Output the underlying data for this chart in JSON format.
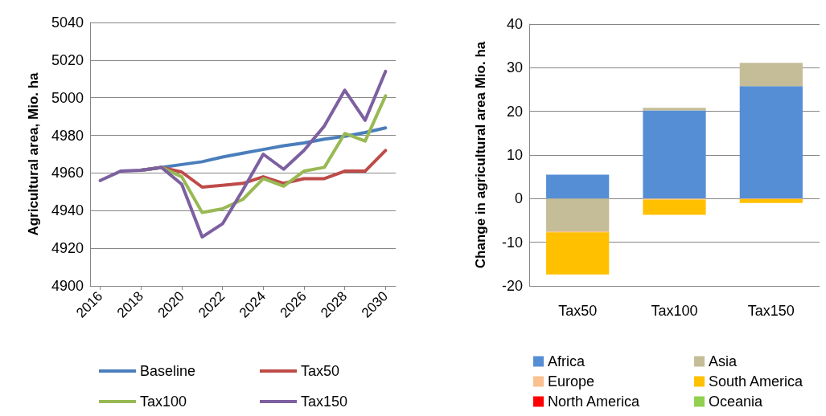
{
  "chart_data": [
    {
      "type": "line",
      "ylabel": "Agricultural area, Mio. ha",
      "x": [
        2016,
        2017,
        2018,
        2019,
        2020,
        2021,
        2022,
        2023,
        2024,
        2025,
        2026,
        2027,
        2028,
        2029,
        2030
      ],
      "xlim": [
        2015.5,
        2030.5
      ],
      "xticks": [
        2016,
        2018,
        2020,
        2022,
        2024,
        2026,
        2028,
        2030
      ],
      "ylim": [
        4900,
        5040
      ],
      "yticks": [
        4900,
        4920,
        4940,
        4960,
        4980,
        5000,
        5020,
        5040
      ],
      "grid": "y",
      "legend": "bottom",
      "marker": "none",
      "line_style": "solid",
      "series": [
        {
          "name": "Baseline",
          "color": "#4a7ebb",
          "values": [
            null,
            null,
            4961.5,
            4963,
            4964.5,
            4966,
            4968.5,
            4970.5,
            4972.5,
            4974.5,
            4976,
            4978,
            4979.5,
            4981.5,
            4984
          ]
        },
        {
          "name": "Tax50",
          "color": "#be4b48",
          "values": [
            null,
            null,
            4961.5,
            4963,
            4960.5,
            4952.5,
            4953.5,
            4954.5,
            4958,
            4954.5,
            4957,
            4957,
            4961,
            4961,
            4972
          ]
        },
        {
          "name": "Tax100",
          "color": "#98b954",
          "values": [
            null,
            null,
            4961.5,
            4963,
            4958,
            4939,
            4941,
            4946,
            4957,
            4953,
            4961,
            4963,
            4981,
            4977,
            5001
          ]
        },
        {
          "name": "Tax150",
          "color": "#7d60a0",
          "values": [
            4956,
            4961,
            4961.5,
            4963,
            4954,
            4926,
            4933,
            4951,
            4970,
            4962,
            4972,
            4985,
            5004,
            4988,
            5014
          ]
        }
      ]
    },
    {
      "type": "bar",
      "stacked": true,
      "ylabel": "Change in agricultural area Mio. ha",
      "categories": [
        "Tax50",
        "Tax100",
        "Tax150"
      ],
      "ylim": [
        -20,
        40
      ],
      "yticks": [
        -20,
        -10,
        0,
        10,
        20,
        30,
        40
      ],
      "grid": "y",
      "legend": "bottom",
      "series": [
        {
          "name": "Africa",
          "color": "#558ed5",
          "values": [
            5.5,
            20.2,
            25.8
          ]
        },
        {
          "name": "Asia",
          "color": "#c4bd97",
          "values": [
            -7.5,
            0.6,
            5.3
          ]
        },
        {
          "name": "Europe",
          "color": "#fac090",
          "values": [
            -0.2,
            -0.2,
            -0.1
          ]
        },
        {
          "name": "South America",
          "color": "#ffc000",
          "values": [
            -9.7,
            -3.5,
            -0.9
          ]
        },
        {
          "name": "North America",
          "color": "#ff0000",
          "values": [
            0,
            0,
            0
          ]
        },
        {
          "name": "Oceania",
          "color": "#92d050",
          "values": [
            0,
            0,
            0
          ]
        }
      ]
    }
  ]
}
